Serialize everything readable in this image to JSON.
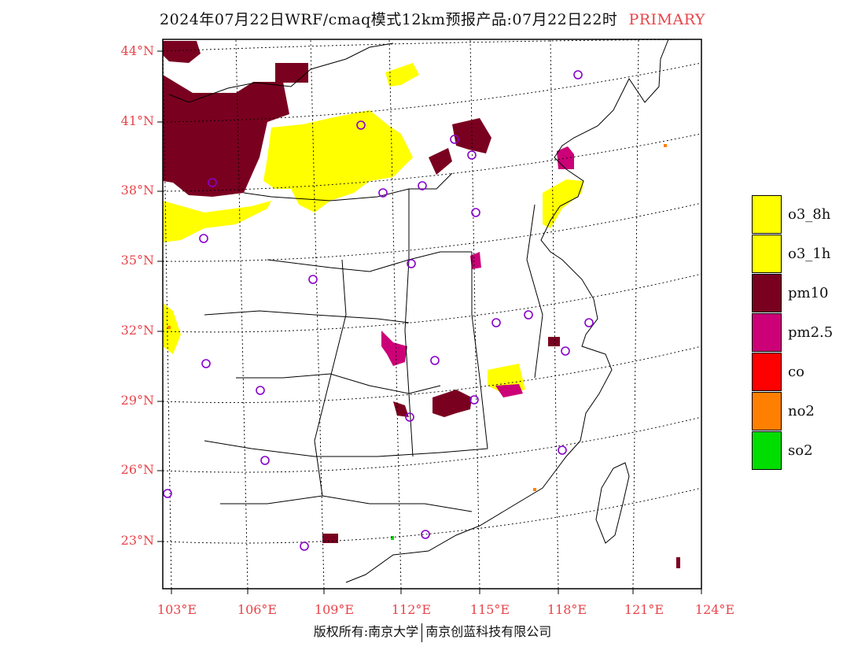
{
  "title": {
    "text": "2024年07月22日WRF/cmaq模式12km预报产品:07月22日22时",
    "tag": "PRIMARY"
  },
  "map": {
    "lat_labels": [
      "44°N",
      "41°N",
      "38°N",
      "35°N",
      "32°N",
      "29°N",
      "26°N",
      "23°N"
    ],
    "lon_labels": [
      "103°E",
      "106°E",
      "109°E",
      "112°E",
      "115°E",
      "118°E",
      "121°E",
      "124°E"
    ],
    "extent": {
      "lon": [
        102.7,
        124
      ],
      "lat": [
        21.9,
        44.2
      ]
    }
  },
  "legend": [
    {
      "label": "o3_8h",
      "color": "#ffff00"
    },
    {
      "label": "o3_1h",
      "color": "#ffff00"
    },
    {
      "label": "pm10",
      "color": "#7a0020"
    },
    {
      "label": "pm2.5",
      "color": "#cc0077"
    },
    {
      "label": "co",
      "color": "#ff0000"
    },
    {
      "label": "no2",
      "color": "#ff8000"
    },
    {
      "label": "so2",
      "color": "#00dd00"
    }
  ],
  "footer": {
    "left": "版权所有:南京大学",
    "right": "南京创蓝科技有限公司"
  }
}
